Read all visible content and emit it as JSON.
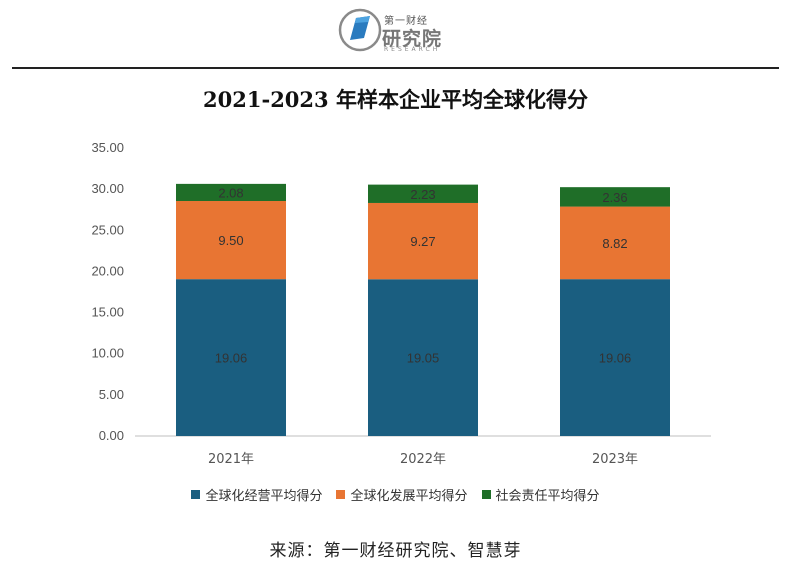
{
  "logo": {
    "top_text": "第一财经",
    "main_text": "研究院",
    "sub_text": "RESEARCH"
  },
  "colors": {
    "operations": "#1a5e80",
    "development": "#e87533",
    "social": "#1f6e28",
    "axis": "#bfbfbf"
  },
  "chart_data": {
    "type": "bar",
    "stacked": true,
    "title": "2021-2023 年样本企业平均全球化得分",
    "categories": [
      "2021年",
      "2022年",
      "2023年"
    ],
    "series": [
      {
        "name": "全球化经营平均得分",
        "values": [
          19.06,
          19.05,
          19.06
        ],
        "labels": [
          "19.06",
          "19.05",
          "19.06"
        ],
        "color": "#1a5e80"
      },
      {
        "name": "全球化发展平均得分",
        "values": [
          9.5,
          9.27,
          8.82
        ],
        "labels": [
          "9.50",
          "9.27",
          "8.82"
        ],
        "color": "#e87533"
      },
      {
        "name": "社会责任平均得分",
        "values": [
          2.08,
          2.23,
          2.36
        ],
        "labels": [
          "2.08",
          "2.23",
          "2.36"
        ],
        "color": "#1f6e28"
      }
    ],
    "yticks": [
      "0.00",
      "5.00",
      "10.00",
      "15.00",
      "20.00",
      "25.00",
      "30.00",
      "35.00"
    ],
    "ylim": [
      0,
      35
    ],
    "legend_position": "bottom",
    "grid": false
  },
  "source": "来源：第一财经研究院、智慧芽"
}
